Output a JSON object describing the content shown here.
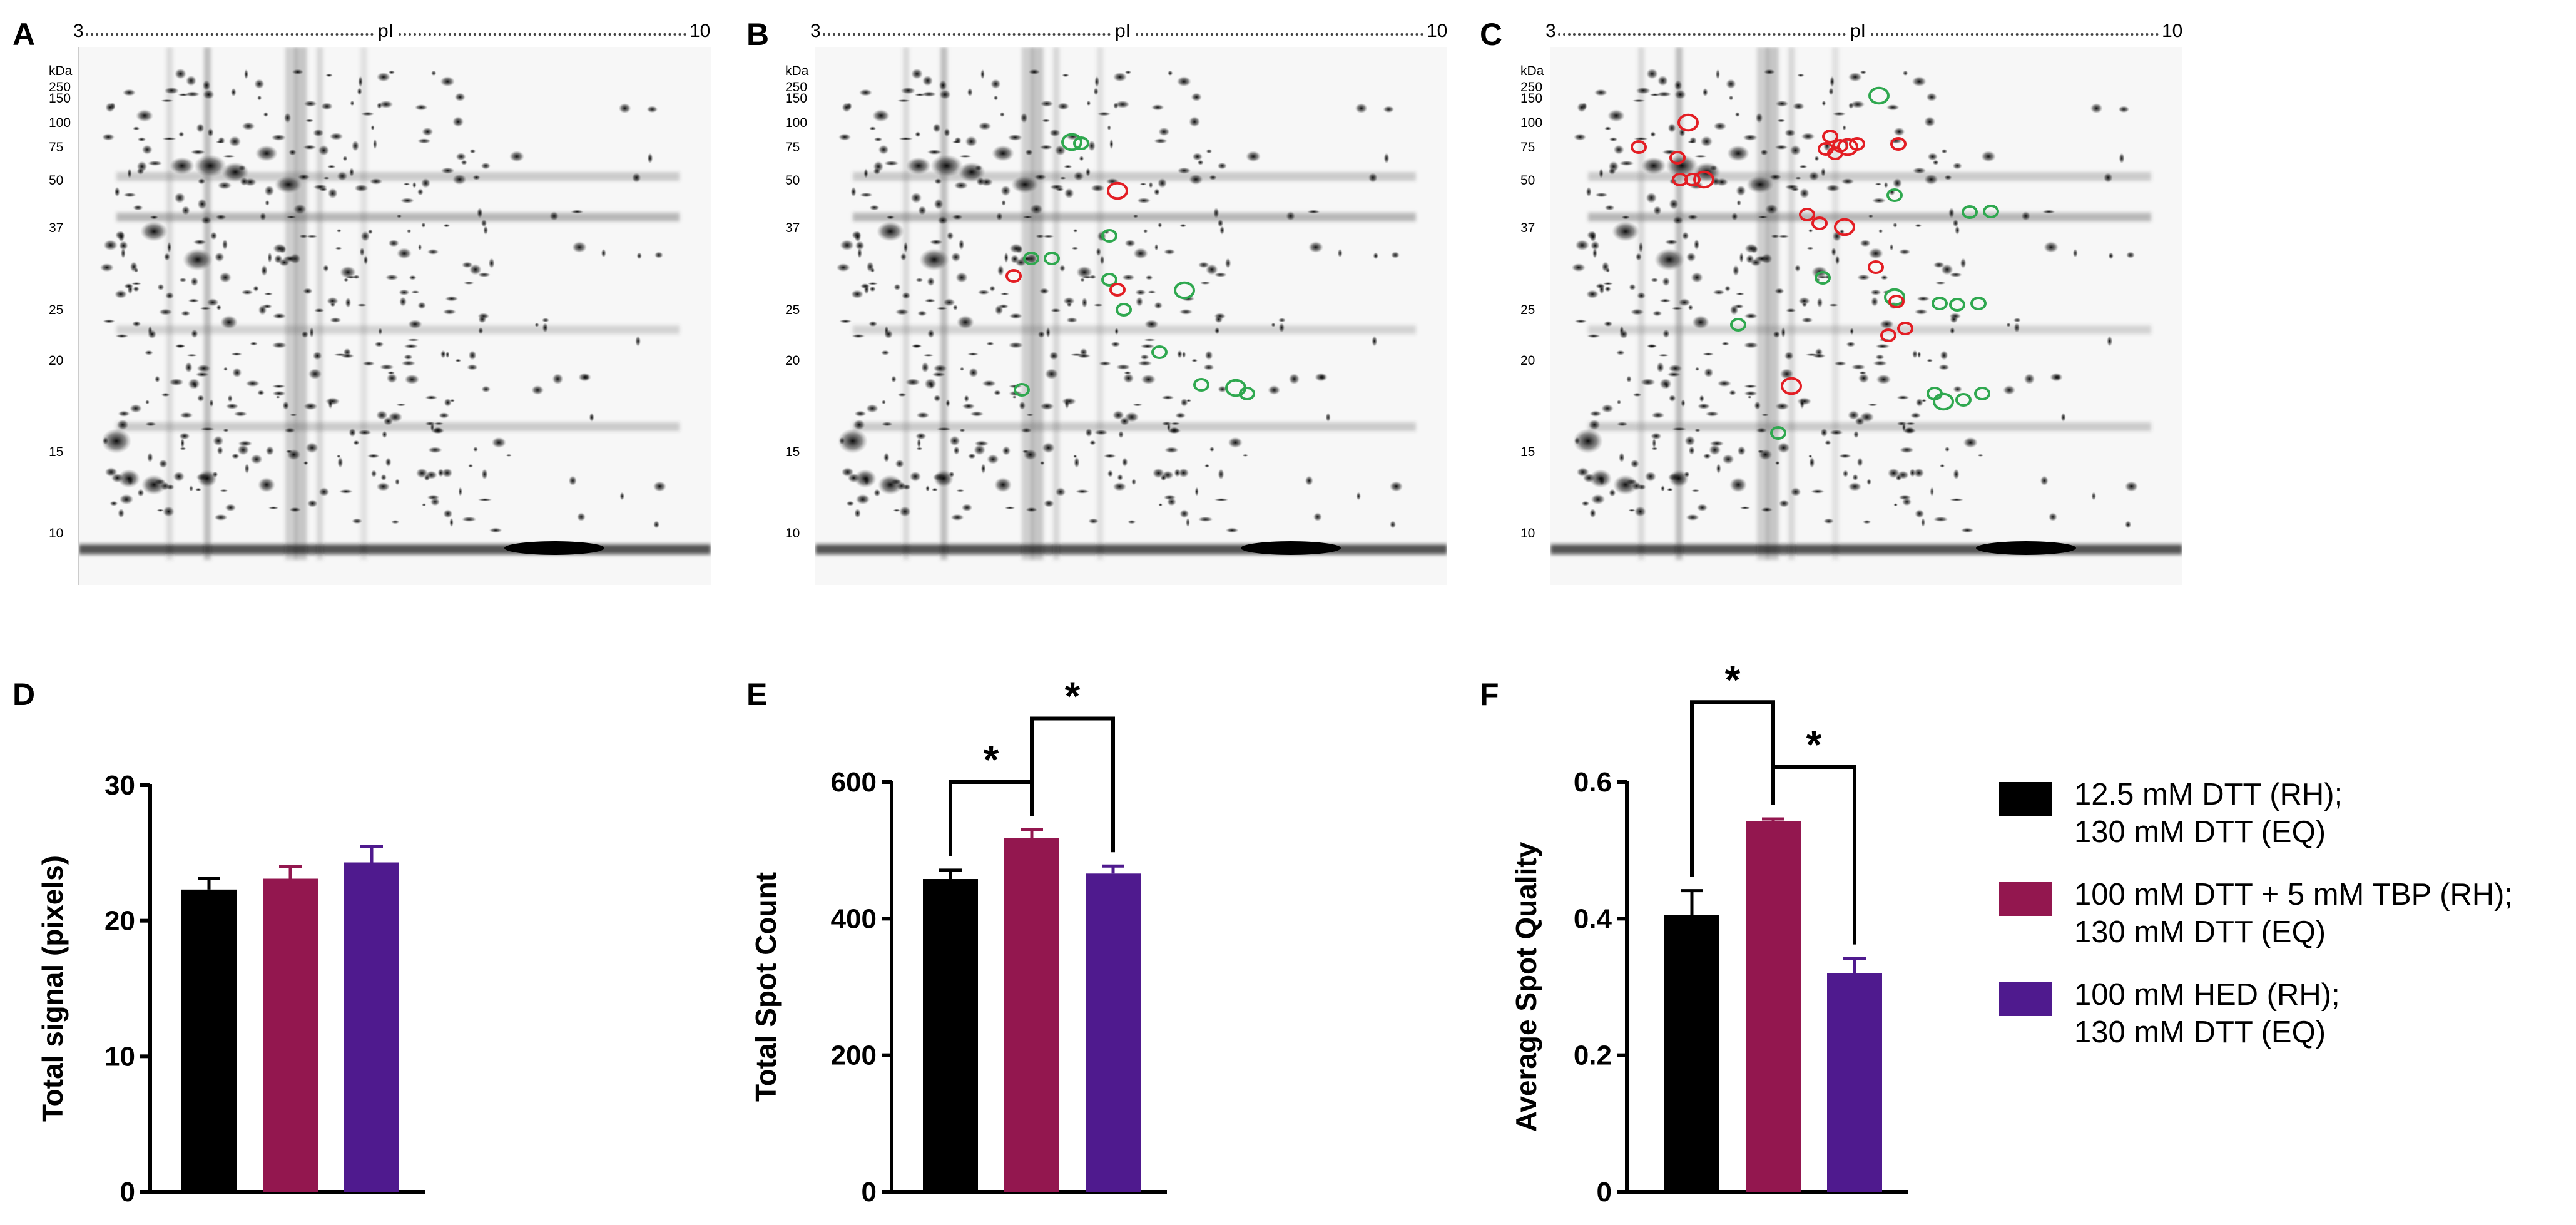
{
  "colors": {
    "black": "#000000",
    "crimson": "#93174f",
    "purple": "#4f1a8e",
    "green_circle": "#2fa84f",
    "red_circle": "#e31e24"
  },
  "panels": {
    "A": {
      "letter": "A"
    },
    "B": {
      "letter": "B"
    },
    "C": {
      "letter": "C"
    },
    "D": {
      "letter": "D"
    },
    "E": {
      "letter": "E"
    },
    "F": {
      "letter": "F"
    }
  },
  "gel_axis": {
    "pi_start": "3",
    "pi_label": "pI",
    "pi_end": "10",
    "kda_label": "kDa",
    "mw_markers": [
      "250",
      "150",
      "100",
      "75",
      "50",
      "37",
      "25",
      "20",
      "15",
      "10"
    ]
  },
  "gel_markers": {
    "B_green": 13,
    "B_red": 3,
    "C_green": 15,
    "C_red": 21
  },
  "legend": [
    {
      "line1": "12.5 mM DTT (RH);",
      "line2": "130 mM DTT (EQ)",
      "color": "#000000"
    },
    {
      "line1": "100 mM DTT + 5 mM TBP (RH);",
      "line2": "130 mM DTT (EQ)",
      "color": "#93174f"
    },
    {
      "line1": "100 mM HED (RH);",
      "line2": "130 mM DTT (EQ)",
      "color": "#4f1a8e"
    }
  ],
  "chart_data": [
    {
      "panel": "D",
      "type": "bar",
      "categories": [
        "12.5 mM DTT (RH); 130 mM DTT (EQ)",
        "100 mM DTT + 5 mM TBP (RH); 130 mM DTT (EQ)",
        "100 mM HED (RH); 130 mM DTT (EQ)"
      ],
      "values": [
        22.3,
        23.1,
        24.3
      ],
      "errors": [
        0.8,
        0.9,
        1.2
      ],
      "ylabel": "Total signal (pixels)",
      "ylim": [
        0,
        30
      ],
      "yticks": [
        0,
        10,
        20,
        30
      ],
      "significance": []
    },
    {
      "panel": "E",
      "type": "bar",
      "categories": [
        "12.5 mM DTT (RH); 130 mM DTT (EQ)",
        "100 mM DTT + 5 mM TBP (RH); 130 mM DTT (EQ)",
        "100 mM HED (RH); 130 mM DTT (EQ)"
      ],
      "values": [
        458,
        518,
        466
      ],
      "errors": [
        13,
        12,
        11
      ],
      "ylabel": "Total Spot Count",
      "ylim": [
        0,
        600
      ],
      "yticks": [
        0,
        200,
        400,
        600
      ],
      "significance": [
        {
          "from": 0,
          "to": 1,
          "label": "*",
          "level": 600
        },
        {
          "from": 1,
          "to": 2,
          "label": "*",
          "level": 693
        }
      ]
    },
    {
      "panel": "F",
      "type": "bar",
      "categories": [
        "12.5 mM DTT (RH); 130 mM DTT (EQ)",
        "100 mM DTT + 5 mM TBP (RH); 130 mM DTT (EQ)",
        "100 mM HED (RH); 130 mM DTT (EQ)"
      ],
      "values": [
        0.405,
        0.543,
        0.32
      ],
      "errors": [
        0.036,
        0.003,
        0.022
      ],
      "ylabel": "Average Spot Quality",
      "ylim": [
        0,
        0.6
      ],
      "yticks": [
        "0",
        "0.2",
        "0.4",
        "0.6"
      ],
      "significance": [
        {
          "from": 0,
          "to": 1,
          "label": "*",
          "level": 0.717
        },
        {
          "from": 1,
          "to": 2,
          "label": "*",
          "level": 0.622
        }
      ]
    }
  ]
}
